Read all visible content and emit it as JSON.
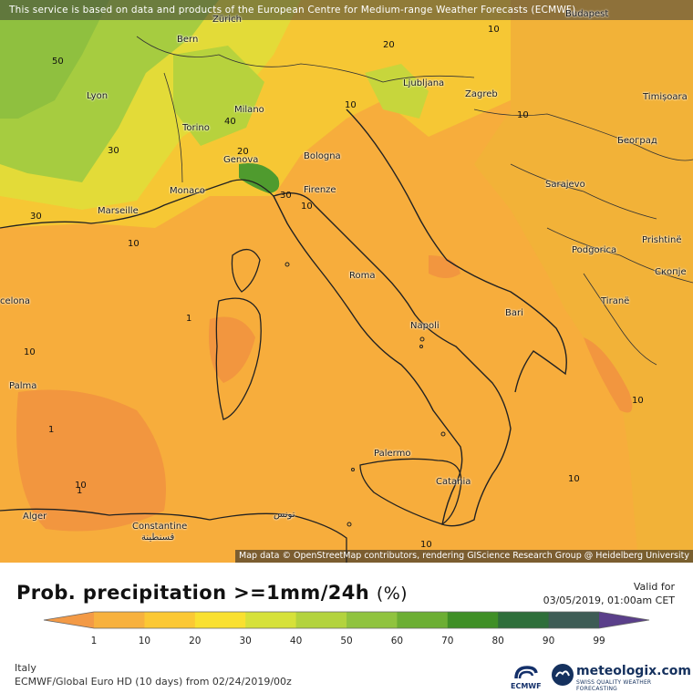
{
  "banner": "This service is based on data and products of the European Centre for Medium-range Weather Forecasts (ECMWF)",
  "attribution": "Map data © OpenStreetMap contributors, rendering GIScience Research Group @ Heidelberg University",
  "cities": {
    "bern": "Bern",
    "zurich": "Zürich",
    "budapest": "Budapest",
    "lyon": "Lyon",
    "milano": "Milano",
    "torino": "Torino",
    "genova": "Genova",
    "bologna": "Bologna",
    "monaco": "Monaco",
    "marseille": "Marseille",
    "firenze": "Firenze",
    "ljubljana": "Ljubljana",
    "zagreb": "Zagreb",
    "timisoara": "Timișoara",
    "beograd": "Београд",
    "sarajevo": "Sarajevo",
    "podgorica": "Podgorica",
    "pristine": "Prishtinë",
    "skopje": "Скопје",
    "tirane": "Tiranë",
    "roma": "Roma",
    "bari": "Bari",
    "napoli": "Napoli",
    "barcelona": "celona",
    "palma": "Palma",
    "palermo": "Palermo",
    "catania": "Catania",
    "alger": "Alger",
    "constantine": "Constantine",
    "constantine_ar": "قسنطينة",
    "tunis": "تونس"
  },
  "contours": [
    "10",
    "20",
    "50",
    "10",
    "10",
    "30",
    "40",
    "20",
    "30",
    "10",
    "10",
    "30",
    "10",
    "1",
    "1",
    "10",
    "10",
    "1",
    "10",
    "10"
  ],
  "legend": {
    "title": "Prob. precipitation >=1mm/24h",
    "unit": "(%)",
    "ticks": [
      "1",
      "10",
      "20",
      "30",
      "40",
      "50",
      "60",
      "70",
      "80",
      "90",
      "99"
    ],
    "colors": [
      "#f39a46",
      "#f7b13e",
      "#fbc834",
      "#f9e030",
      "#d6e13a",
      "#b3d33e",
      "#90c33f",
      "#6cae33",
      "#3f8f26",
      "#2e6e3a",
      "#3e5c55",
      "#5a3f8a"
    ]
  },
  "valid": {
    "label": "Valid for",
    "datetime": "03/05/2019, 01:00am CET"
  },
  "footer": {
    "region": "Italy",
    "model": "ECMWF/Global Euro HD (10 days) from 02/24/2019/00z",
    "ecmwf": "ECMWF",
    "brand": "meteologix.com",
    "slogan": "SWISS QUALITY WEATHER FORECASTING"
  }
}
